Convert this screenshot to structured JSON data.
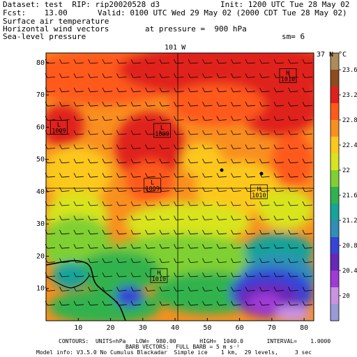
{
  "header": {
    "dataset": "Dataset: test  RIP: rip20020528 d3",
    "init": "Init: 1200 UTC Tue 28 May 02",
    "fcst": "Fcst:    13.00",
    "valid": "Valid: 0100 UTC Wed 29 May 02 (2000 CDT Tue 28 May 02)",
    "field1": "Surface air temperature",
    "field2": "Horizontal wind vectors",
    "pressure": "at pressure =  900 hPa",
    "field3": "Sea-level pressure",
    "sm": "sm= 6"
  },
  "map": {
    "top_label": "101 W",
    "right_label": "37 N",
    "y_ticks": [
      "80",
      "70",
      "60",
      "50",
      "40",
      "30",
      "20",
      "10"
    ],
    "x_ticks": [
      "10",
      "20",
      "30",
      "40",
      "50",
      "60",
      "70",
      "80"
    ],
    "centers": [
      {
        "type": "H",
        "value": "1010",
        "x": 75,
        "y": 76
      },
      {
        "type": "L",
        "value": "1009",
        "x": 4,
        "y": 60
      },
      {
        "type": "L",
        "value": "1009",
        "x": 36,
        "y": 59
      },
      {
        "type": "L",
        "value": "1009",
        "x": 33,
        "y": 42
      },
      {
        "type": "H",
        "value": "1010",
        "x": 66,
        "y": 40
      },
      {
        "type": "H",
        "value": "1010",
        "x": 35,
        "y": 14
      }
    ]
  },
  "colorbar": {
    "unit": "°C",
    "labels": [
      "23.6",
      "23.2",
      "22.8",
      "22.4",
      "22",
      "21.6",
      "21.2",
      "20.8",
      "20.4",
      "20"
    ],
    "colors": [
      "#ad8b5a",
      "#8e4b20",
      "#e0201c",
      "#ff5a1a",
      "#f98f1f",
      "#fcc81d",
      "#d8e41f",
      "#7fd033",
      "#30b24e",
      "#16a39a",
      "#2f8fb8",
      "#3645d6",
      "#6727b8",
      "#a03ad6",
      "#c993e2",
      "#9a9ad8"
    ]
  },
  "footer": {
    "line1": "CONTOURS:  UNITS=hPa   LOW=  980.00       HIGH=  1040.0       INTERVAL=    1.0000",
    "line2": "BARB VECTORS:  FULL BARB = 5 m s⁻¹",
    "line3": "Model info: V3.5.0 No Cumulus Blackadar  Simple ice    1 km,  29 levels,     3 sec"
  }
}
